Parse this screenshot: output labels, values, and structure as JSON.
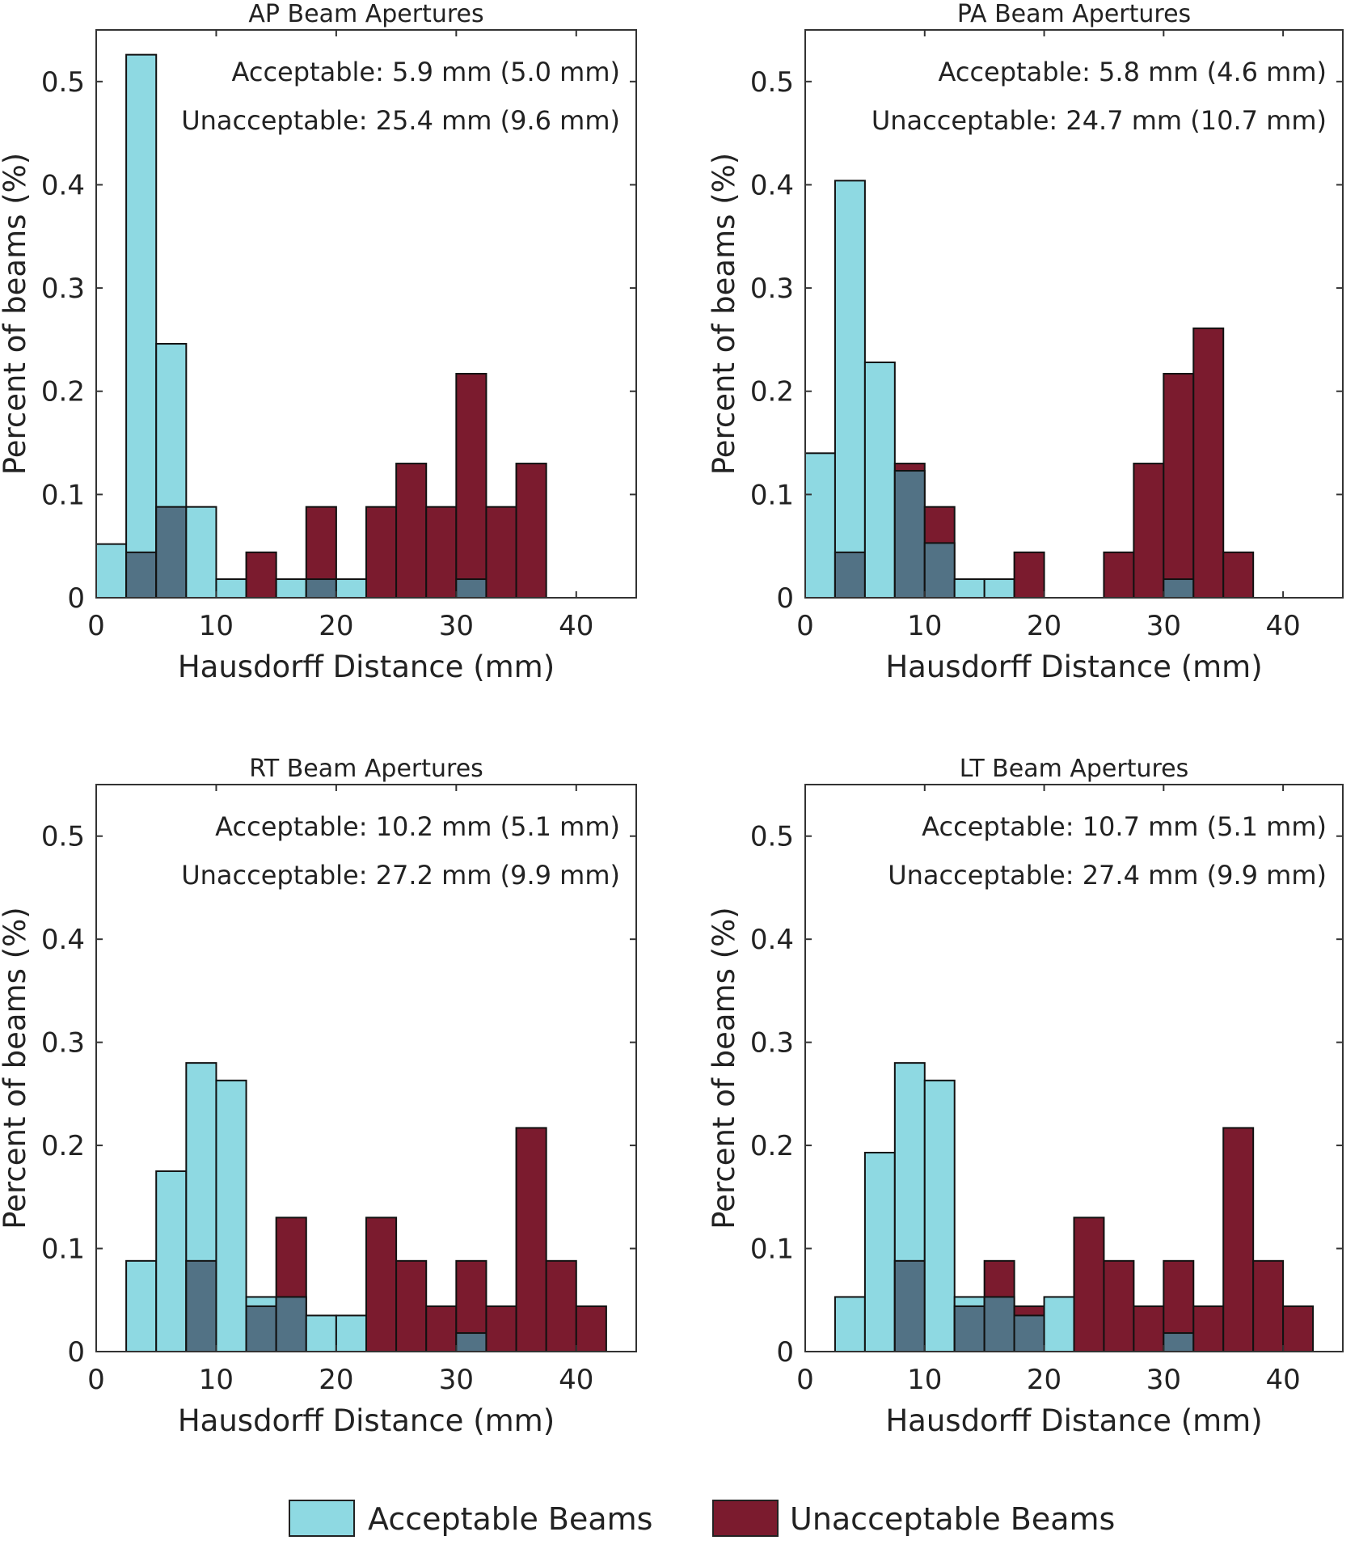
{
  "colors": {
    "acceptable": "#8ed9e2",
    "unacceptable": "#7b1b2e",
    "overlap": "#527285"
  },
  "legend": {
    "acceptable": "Acceptable Beams",
    "unacceptable": "Unacceptable Beams"
  },
  "chart_data": [
    {
      "type": "bar",
      "title": "AP Beam Apertures",
      "xlabel": "Hausdorff Distance (mm)",
      "ylabel": "Percent of beams (%)",
      "xlim": [
        0,
        45
      ],
      "ylim": [
        0,
        0.55
      ],
      "xticks": [
        "0",
        "10",
        "20",
        "30",
        "40"
      ],
      "yticks": [
        "0",
        "0.1",
        "0.2",
        "0.3",
        "0.4",
        "0.5"
      ],
      "bin_width": 2.5,
      "annotations": [
        "Acceptable: 5.9 mm (5.0 mm)",
        "Unacceptable: 25.4 mm  (9.6 mm)"
      ],
      "series": [
        {
          "name": "Acceptable Beams",
          "values": [
            0.052,
            0.526,
            0.246,
            0.088,
            0.018,
            0,
            0.018,
            0.018,
            0.018,
            0,
            0,
            0,
            0.018,
            0,
            0,
            0,
            0,
            0
          ]
        },
        {
          "name": "Unacceptable Beams",
          "values": [
            0,
            0.044,
            0.088,
            0,
            0,
            0.044,
            0,
            0.088,
            0,
            0.088,
            0.13,
            0.088,
            0.217,
            0.088,
            0.13,
            0,
            0,
            0
          ]
        }
      ]
    },
    {
      "type": "bar",
      "title": "PA Beam Apertures",
      "xlabel": "Hausdorff Distance (mm)",
      "ylabel": "Percent of beams (%)",
      "xlim": [
        0,
        45
      ],
      "ylim": [
        0,
        0.55
      ],
      "xticks": [
        "0",
        "10",
        "20",
        "30",
        "40"
      ],
      "yticks": [
        "0",
        "0.1",
        "0.2",
        "0.3",
        "0.4",
        "0.5"
      ],
      "bin_width": 2.5,
      "annotations": [
        "Acceptable: 5.8 mm (4.6 mm)",
        "Unacceptable: 24.7 mm (10.7 mm)"
      ],
      "series": [
        {
          "name": "Acceptable Beams",
          "values": [
            0.14,
            0.404,
            0.228,
            0.123,
            0.053,
            0.018,
            0.018,
            0,
            0,
            0,
            0,
            0,
            0.018,
            0,
            0,
            0,
            0,
            0
          ]
        },
        {
          "name": "Unacceptable Beams",
          "values": [
            0,
            0.044,
            0,
            0.13,
            0.088,
            0,
            0,
            0.044,
            0,
            0,
            0.044,
            0.13,
            0.217,
            0.261,
            0.044,
            0,
            0,
            0
          ]
        }
      ]
    },
    {
      "type": "bar",
      "title": "RT Beam Apertures",
      "xlabel": "Hausdorff Distance (mm)",
      "ylabel": "Percent of beams (%)",
      "xlim": [
        0,
        45
      ],
      "ylim": [
        0,
        0.55
      ],
      "xticks": [
        "0",
        "10",
        "20",
        "30",
        "40"
      ],
      "yticks": [
        "0",
        "0.1",
        "0.2",
        "0.3",
        "0.4",
        "0.5"
      ],
      "bin_width": 2.5,
      "annotations": [
        "Acceptable: 10.2 mm (5.1 mm)",
        "Unacceptable: 27.2 mm  (9.9 mm)"
      ],
      "series": [
        {
          "name": "Acceptable Beams",
          "values": [
            0,
            0.088,
            0.175,
            0.28,
            0.263,
            0.053,
            0.053,
            0.035,
            0.035,
            0,
            0,
            0,
            0.018,
            0,
            0,
            0,
            0,
            0
          ]
        },
        {
          "name": "Unacceptable Beams",
          "values": [
            0,
            0,
            0,
            0.088,
            0,
            0.044,
            0.13,
            0,
            0,
            0.13,
            0.088,
            0.044,
            0.088,
            0.044,
            0.217,
            0.088,
            0.044,
            0
          ]
        }
      ]
    },
    {
      "type": "bar",
      "title": "LT Beam Apertures",
      "xlabel": "Hausdorff Distance (mm)",
      "ylabel": "Percent of beams (%)",
      "xlim": [
        0,
        45
      ],
      "ylim": [
        0,
        0.55
      ],
      "xticks": [
        "0",
        "10",
        "20",
        "30",
        "40"
      ],
      "yticks": [
        "0",
        "0.1",
        "0.2",
        "0.3",
        "0.4",
        "0.5"
      ],
      "bin_width": 2.5,
      "annotations": [
        "Acceptable: 10.7 mm (5.1 mm)",
        "Unacceptable: 27.4 mm (9.9 mm)"
      ],
      "series": [
        {
          "name": "Acceptable Beams",
          "values": [
            0,
            0.053,
            0.193,
            0.28,
            0.263,
            0.053,
            0.053,
            0.035,
            0.053,
            0,
            0,
            0,
            0.018,
            0,
            0,
            0,
            0,
            0
          ]
        },
        {
          "name": "Unacceptable Beams",
          "values": [
            0,
            0,
            0,
            0.088,
            0,
            0.044,
            0.088,
            0.044,
            0,
            0.13,
            0.088,
            0.044,
            0.088,
            0.044,
            0.217,
            0.088,
            0.044,
            0
          ]
        }
      ]
    }
  ]
}
